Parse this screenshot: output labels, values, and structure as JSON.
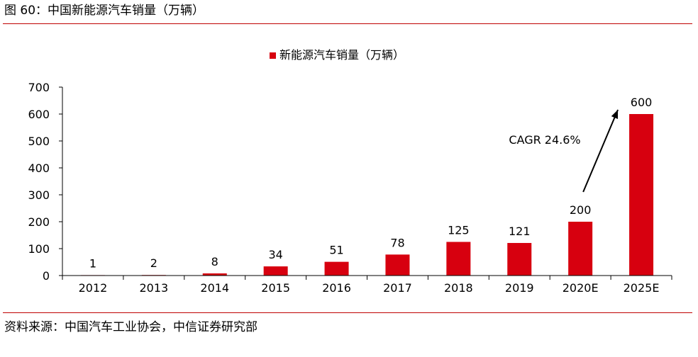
{
  "figure": {
    "title": "图 60：中国新能源汽车销量（万辆）",
    "source": "资料来源：中国汽车工业协会，中信证券研究部"
  },
  "colors": {
    "accent": "#d7000f",
    "rule": "#c00000",
    "axis": "#000000",
    "text": "#000000"
  },
  "chart_data": {
    "type": "bar",
    "title": "",
    "xlabel": "",
    "ylabel": "",
    "ylim": [
      0,
      700
    ],
    "yticks": [
      0,
      100,
      200,
      300,
      400,
      500,
      600,
      700
    ],
    "grid": false,
    "legend": {
      "position": "top-center",
      "entries": [
        "新能源汽车销量（万辆）"
      ]
    },
    "categories": [
      "2012",
      "2013",
      "2014",
      "2015",
      "2016",
      "2017",
      "2018",
      "2019",
      "2020E",
      "2025E"
    ],
    "series": [
      {
        "name": "新能源汽车销量（万辆）",
        "color": "#d7000f",
        "values": [
          1,
          2,
          8,
          34,
          51,
          78,
          125,
          121,
          200,
          600
        ],
        "labels": [
          "1",
          "2",
          "8",
          "34",
          "51",
          "78",
          "125",
          "121",
          "200",
          "600"
        ]
      }
    ],
    "annotations": [
      {
        "text": "CAGR 24.6%",
        "arrow_from_category": "2020E",
        "arrow_to_category": "2025E"
      }
    ]
  }
}
